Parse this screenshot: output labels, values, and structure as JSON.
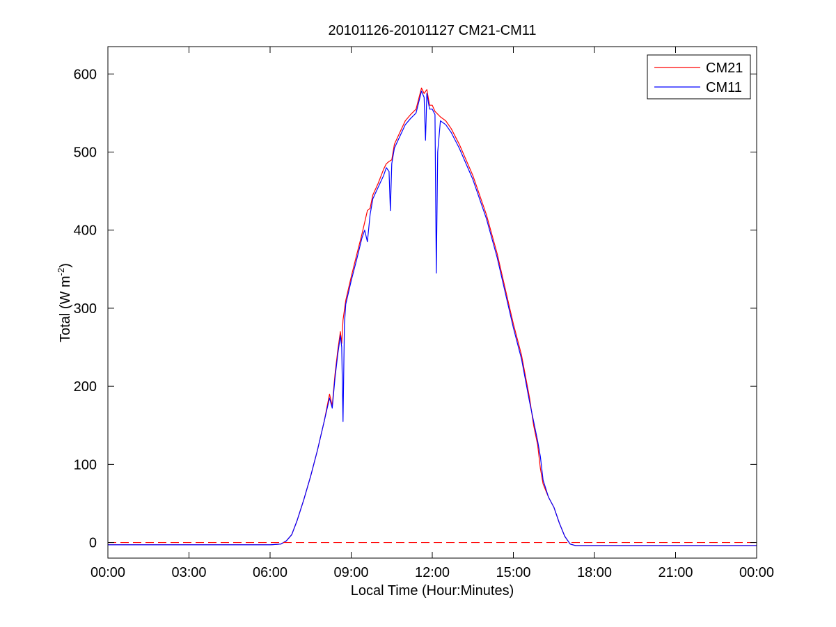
{
  "chart_data": {
    "type": "line",
    "title": "20101126-20101127 CM21-CM11",
    "xlabel": "Local Time (Hour:Minutes)",
    "ylabel_main": "Total (W m",
    "ylabel_sup": "-2",
    "ylabel_close": ")",
    "xlim_hours": [
      0,
      24
    ],
    "ylim": [
      -20,
      635
    ],
    "xticks": [
      {
        "hour": 0,
        "label": "00:00"
      },
      {
        "hour": 3,
        "label": "03:00"
      },
      {
        "hour": 6,
        "label": "06:00"
      },
      {
        "hour": 9,
        "label": "09:00"
      },
      {
        "hour": 12,
        "label": "12:00"
      },
      {
        "hour": 15,
        "label": "15:00"
      },
      {
        "hour": 18,
        "label": "18:00"
      },
      {
        "hour": 21,
        "label": "21:00"
      },
      {
        "hour": 24,
        "label": "00:00"
      }
    ],
    "yticks": [
      0,
      100,
      200,
      300,
      400,
      500,
      600
    ],
    "grid": false,
    "legend_position": "top-right",
    "reference_line": {
      "y": 0,
      "color": "#ff0000",
      "style": "dashed"
    },
    "series": [
      {
        "name": "CM21",
        "color": "#ff0000",
        "points": [
          [
            0,
            -3
          ],
          [
            2.0,
            -3
          ],
          [
            4.0,
            -3
          ],
          [
            6.0,
            -3
          ],
          [
            6.4,
            -2
          ],
          [
            6.6,
            2
          ],
          [
            6.8,
            10
          ],
          [
            7.0,
            28
          ],
          [
            7.25,
            55
          ],
          [
            7.5,
            85
          ],
          [
            7.75,
            118
          ],
          [
            8.0,
            155
          ],
          [
            8.2,
            190
          ],
          [
            8.3,
            175
          ],
          [
            8.4,
            215
          ],
          [
            8.5,
            245
          ],
          [
            8.6,
            270
          ],
          [
            8.65,
            255
          ],
          [
            8.7,
            285
          ],
          [
            8.8,
            310
          ],
          [
            9.0,
            340
          ],
          [
            9.2,
            368
          ],
          [
            9.4,
            395
          ],
          [
            9.5,
            410
          ],
          [
            9.6,
            425
          ],
          [
            9.7,
            428
          ],
          [
            9.8,
            445
          ],
          [
            10.0,
            460
          ],
          [
            10.2,
            478
          ],
          [
            10.3,
            485
          ],
          [
            10.4,
            488
          ],
          [
            10.5,
            490
          ],
          [
            10.6,
            510
          ],
          [
            10.8,
            525
          ],
          [
            11.0,
            540
          ],
          [
            11.2,
            548
          ],
          [
            11.4,
            555
          ],
          [
            11.6,
            582
          ],
          [
            11.7,
            575
          ],
          [
            11.8,
            580
          ],
          [
            11.9,
            560
          ],
          [
            12.0,
            560
          ],
          [
            12.1,
            552
          ],
          [
            12.3,
            545
          ],
          [
            12.5,
            540
          ],
          [
            12.7,
            530
          ],
          [
            13.0,
            510
          ],
          [
            13.5,
            470
          ],
          [
            14.0,
            420
          ],
          [
            14.4,
            370
          ],
          [
            14.8,
            310
          ],
          [
            15.0,
            280
          ],
          [
            15.3,
            240
          ],
          [
            15.6,
            185
          ],
          [
            15.75,
            150
          ],
          [
            15.9,
            125
          ],
          [
            16.0,
            95
          ],
          [
            16.1,
            75
          ],
          [
            16.3,
            58
          ],
          [
            16.5,
            45
          ],
          [
            16.7,
            25
          ],
          [
            16.9,
            8
          ],
          [
            17.1,
            -2
          ],
          [
            17.3,
            -4
          ],
          [
            18.0,
            -4
          ],
          [
            20.0,
            -4
          ],
          [
            22.0,
            -4
          ],
          [
            24.0,
            -4
          ]
        ]
      },
      {
        "name": "CM11",
        "color": "#0000ff",
        "points": [
          [
            0,
            -3
          ],
          [
            2.0,
            -3
          ],
          [
            4.0,
            -3
          ],
          [
            6.0,
            -3
          ],
          [
            6.4,
            -2
          ],
          [
            6.6,
            2
          ],
          [
            6.8,
            10
          ],
          [
            7.0,
            28
          ],
          [
            7.25,
            55
          ],
          [
            7.5,
            85
          ],
          [
            7.75,
            118
          ],
          [
            8.0,
            155
          ],
          [
            8.2,
            185
          ],
          [
            8.3,
            172
          ],
          [
            8.4,
            210
          ],
          [
            8.5,
            240
          ],
          [
            8.6,
            265
          ],
          [
            8.65,
            250
          ],
          [
            8.7,
            155
          ],
          [
            8.75,
            280
          ],
          [
            8.8,
            305
          ],
          [
            9.0,
            335
          ],
          [
            9.2,
            362
          ],
          [
            9.4,
            390
          ],
          [
            9.5,
            400
          ],
          [
            9.6,
            385
          ],
          [
            9.7,
            420
          ],
          [
            9.8,
            440
          ],
          [
            10.0,
            455
          ],
          [
            10.2,
            470
          ],
          [
            10.3,
            480
          ],
          [
            10.4,
            475
          ],
          [
            10.45,
            425
          ],
          [
            10.5,
            485
          ],
          [
            10.6,
            505
          ],
          [
            10.8,
            520
          ],
          [
            11.0,
            535
          ],
          [
            11.2,
            543
          ],
          [
            11.4,
            550
          ],
          [
            11.6,
            578
          ],
          [
            11.7,
            570
          ],
          [
            11.75,
            515
          ],
          [
            11.8,
            575
          ],
          [
            11.9,
            555
          ],
          [
            12.0,
            555
          ],
          [
            12.1,
            548
          ],
          [
            12.15,
            345
          ],
          [
            12.2,
            500
          ],
          [
            12.3,
            540
          ],
          [
            12.5,
            535
          ],
          [
            12.7,
            525
          ],
          [
            13.0,
            505
          ],
          [
            13.5,
            465
          ],
          [
            14.0,
            415
          ],
          [
            14.4,
            365
          ],
          [
            14.8,
            305
          ],
          [
            15.0,
            275
          ],
          [
            15.3,
            235
          ],
          [
            15.6,
            180
          ],
          [
            15.75,
            155
          ],
          [
            15.9,
            130
          ],
          [
            16.0,
            110
          ],
          [
            16.1,
            80
          ],
          [
            16.3,
            58
          ],
          [
            16.5,
            45
          ],
          [
            16.7,
            25
          ],
          [
            16.9,
            8
          ],
          [
            17.1,
            -2
          ],
          [
            17.3,
            -4
          ],
          [
            18.0,
            -4
          ],
          [
            20.0,
            -4
          ],
          [
            22.0,
            -4
          ],
          [
            24.0,
            -4
          ]
        ]
      }
    ]
  }
}
